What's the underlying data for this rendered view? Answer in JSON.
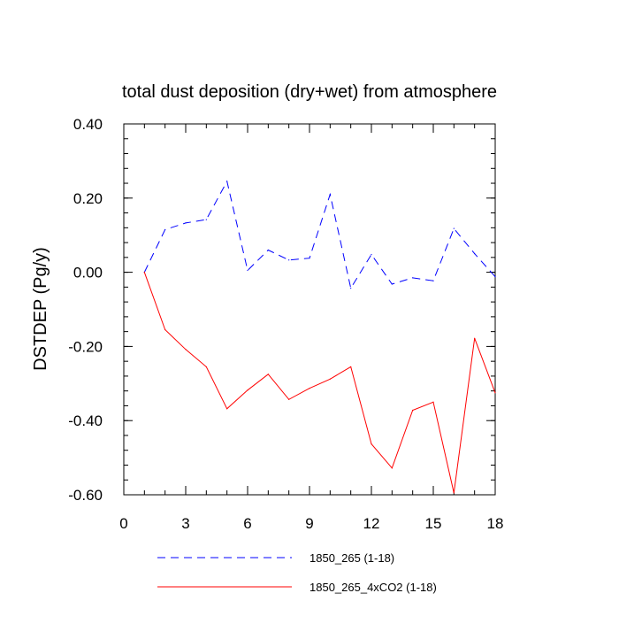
{
  "chart_data": {
    "type": "line",
    "title": "total dust deposition (dry+wet) from atmosphere",
    "xlabel": "",
    "ylabel": "DSTDEP  (Pg/y)",
    "xlim": [
      0,
      18
    ],
    "ylim": [
      -0.6,
      0.4
    ],
    "x_ticks": [
      0,
      3,
      6,
      9,
      12,
      15,
      18
    ],
    "x_tick_labels": [
      "0",
      "3",
      "6",
      "9",
      "12",
      "15",
      "18"
    ],
    "y_ticks": [
      -0.6,
      -0.4,
      -0.2,
      0.0,
      0.2,
      0.4
    ],
    "y_tick_labels": [
      "-0.60",
      "-0.40",
      "-0.20",
      "0.00",
      "0.20",
      "0.40"
    ],
    "grid": false,
    "legend_position": "bottom",
    "series": [
      {
        "name": "1850_265 (1-18)",
        "color": "#0000ff",
        "line_style": "dashed",
        "x": [
          1,
          2,
          3,
          4,
          5,
          6,
          7,
          8,
          9,
          10,
          11,
          12,
          13,
          14,
          15,
          16,
          17,
          18
        ],
        "y": [
          0.0,
          0.115,
          0.133,
          0.142,
          0.245,
          0.005,
          0.06,
          0.033,
          0.038,
          0.21,
          -0.043,
          0.048,
          -0.032,
          -0.015,
          -0.023,
          0.118,
          0.05,
          -0.012
        ]
      },
      {
        "name": "1850_265_4xCO2 (1-18)",
        "color": "#ff0000",
        "line_style": "solid",
        "x": [
          1,
          2,
          3,
          4,
          5,
          6,
          7,
          8,
          9,
          10,
          11,
          12,
          13,
          14,
          15,
          16,
          17,
          18
        ],
        "y": [
          0.0,
          -0.155,
          -0.208,
          -0.255,
          -0.368,
          -0.318,
          -0.275,
          -0.343,
          -0.313,
          -0.288,
          -0.255,
          -0.463,
          -0.528,
          -0.372,
          -0.35,
          -0.595,
          -0.178,
          -0.325
        ]
      }
    ]
  }
}
